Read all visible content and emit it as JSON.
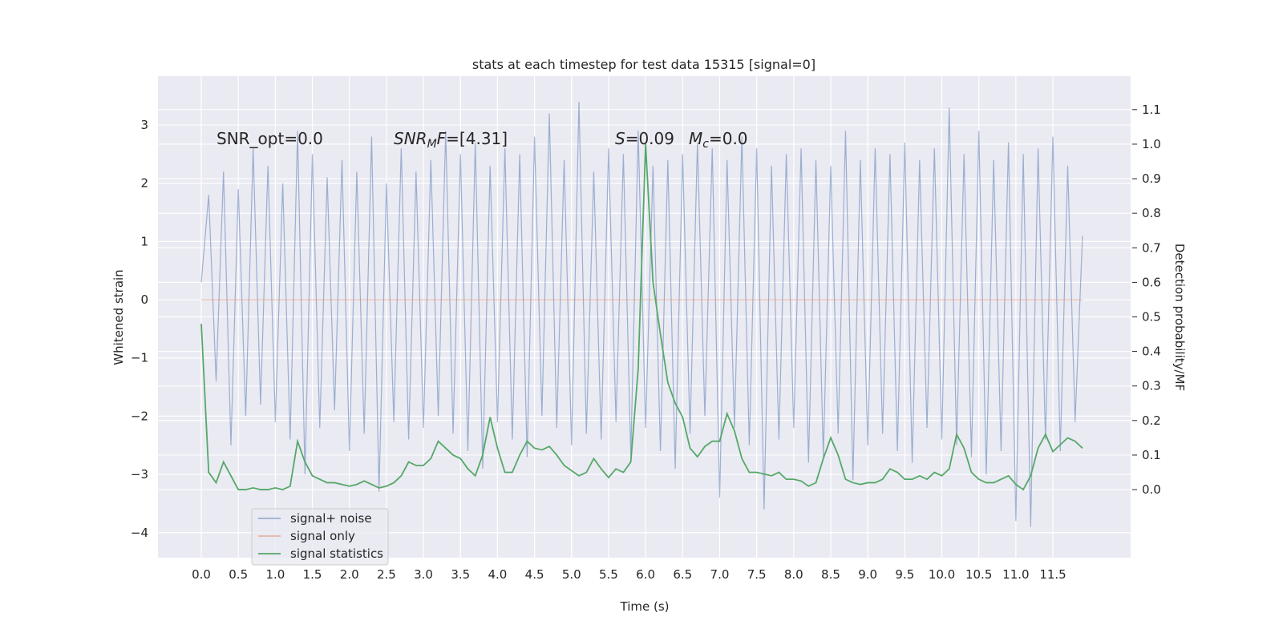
{
  "chart_data": {
    "type": "line",
    "title": "stats at each timestep for test data 15315 [signal=0]",
    "xlabel": "Time (s)",
    "ylabel": "Whitened strain",
    "y2label": "Detection probability/MF",
    "x": [
      0.0,
      0.1,
      0.2,
      0.3,
      0.4,
      0.5,
      0.6,
      0.7,
      0.8,
      0.9,
      1.0,
      1.1,
      1.2,
      1.3,
      1.4,
      1.5,
      1.6,
      1.7,
      1.8,
      1.9,
      2.0,
      2.1,
      2.2,
      2.3,
      2.4,
      2.5,
      2.6,
      2.7,
      2.8,
      2.9,
      3.0,
      3.1,
      3.2,
      3.3,
      3.4,
      3.5,
      3.6,
      3.7,
      3.8,
      3.9,
      4.0,
      4.1,
      4.2,
      4.3,
      4.4,
      4.5,
      4.6,
      4.7,
      4.8,
      4.9,
      5.0,
      5.1,
      5.2,
      5.3,
      5.4,
      5.5,
      5.6,
      5.7,
      5.8,
      5.9,
      6.0,
      6.1,
      6.2,
      6.3,
      6.4,
      6.5,
      6.6,
      6.7,
      6.8,
      6.9,
      7.0,
      7.1,
      7.2,
      7.3,
      7.4,
      7.5,
      7.6,
      7.7,
      7.8,
      7.9,
      8.0,
      8.1,
      8.2,
      8.3,
      8.4,
      8.5,
      8.6,
      8.7,
      8.8,
      8.9,
      9.0,
      9.1,
      9.2,
      9.3,
      9.4,
      9.5,
      9.6,
      9.7,
      9.8,
      9.9,
      10.0,
      10.1,
      10.2,
      10.3,
      10.4,
      10.5,
      10.6,
      10.7,
      10.8,
      10.9,
      11.0,
      11.1,
      11.2,
      11.3,
      11.4,
      11.5,
      11.6,
      11.7,
      11.8,
      11.9
    ],
    "series": [
      {
        "name": "signal+ noise",
        "color": "#4c72b0",
        "alpha": 0.5,
        "values": [
          0.3,
          1.8,
          -1.4,
          2.2,
          -2.5,
          1.9,
          -2.0,
          2.6,
          -1.8,
          2.3,
          -2.1,
          2.0,
          -2.4,
          2.9,
          -3.0,
          2.5,
          -2.2,
          2.1,
          -1.9,
          2.4,
          -2.6,
          2.2,
          -2.3,
          2.8,
          -3.3,
          2.0,
          -2.1,
          2.6,
          -2.4,
          2.2,
          -2.2,
          2.4,
          -2.0,
          2.9,
          -2.3,
          2.5,
          -2.6,
          2.7,
          -2.9,
          2.3,
          -2.1,
          2.6,
          -2.4,
          2.5,
          -2.7,
          2.8,
          -2.0,
          3.2,
          -2.2,
          2.4,
          -2.5,
          3.4,
          -2.3,
          2.2,
          -2.4,
          2.6,
          -2.1,
          2.5,
          -2.7,
          2.9,
          -2.2,
          2.3,
          -2.6,
          2.4,
          -2.9,
          2.5,
          -2.3,
          2.7,
          -2.0,
          2.6,
          -3.4,
          2.4,
          -2.2,
          2.8,
          -2.5,
          2.6,
          -3.6,
          2.3,
          -2.4,
          2.5,
          -2.2,
          2.6,
          -2.8,
          2.4,
          -2.7,
          2.3,
          -2.3,
          2.9,
          -3.1,
          2.4,
          -2.5,
          2.6,
          -2.3,
          2.5,
          -2.6,
          2.7,
          -2.8,
          2.4,
          -2.2,
          2.6,
          -2.4,
          3.3,
          -2.5,
          2.5,
          -2.7,
          2.9,
          -3.0,
          2.4,
          -2.6,
          2.7,
          -3.8,
          2.5,
          -3.9,
          2.6,
          -2.4,
          2.8,
          -2.6,
          2.3,
          -2.1,
          1.1
        ]
      },
      {
        "name": "signal only",
        "color": "#dd8452",
        "alpha": 0.5,
        "values": [
          0,
          0,
          0,
          0,
          0,
          0,
          0,
          0,
          0,
          0,
          0,
          0,
          0,
          0,
          0,
          0,
          0,
          0,
          0,
          0,
          0,
          0,
          0,
          0,
          0,
          0,
          0,
          0,
          0,
          0,
          0,
          0,
          0,
          0,
          0,
          0,
          0,
          0,
          0,
          0,
          0,
          0,
          0,
          0,
          0,
          0,
          0,
          0,
          0,
          0,
          0,
          0,
          0,
          0,
          0,
          0,
          0,
          0,
          0,
          0,
          0,
          0,
          0,
          0,
          0,
          0,
          0,
          0,
          0,
          0,
          0,
          0,
          0,
          0,
          0,
          0,
          0,
          0,
          0,
          0,
          0,
          0,
          0,
          0,
          0,
          0,
          0,
          0,
          0,
          0,
          0,
          0,
          0,
          0,
          0,
          0,
          0,
          0,
          0,
          0,
          0,
          0,
          0,
          0,
          0,
          0,
          0,
          0,
          0,
          0,
          0,
          0,
          0,
          0,
          0,
          0,
          0,
          0,
          0,
          0
        ]
      },
      {
        "name": "signal statistics",
        "color": "#55a868",
        "alpha": 1,
        "axis": "y2",
        "values": [
          0.48,
          0.05,
          0.02,
          0.08,
          0.04,
          0.0,
          0.0,
          0.005,
          0.0,
          0.0,
          0.005,
          0.0,
          0.01,
          0.14,
          0.08,
          0.04,
          0.03,
          0.02,
          0.02,
          0.015,
          0.01,
          0.015,
          0.025,
          0.015,
          0.005,
          0.01,
          0.02,
          0.04,
          0.08,
          0.07,
          0.07,
          0.09,
          0.14,
          0.12,
          0.1,
          0.09,
          0.06,
          0.04,
          0.1,
          0.21,
          0.12,
          0.05,
          0.05,
          0.1,
          0.14,
          0.12,
          0.115,
          0.125,
          0.1,
          0.07,
          0.055,
          0.04,
          0.05,
          0.09,
          0.06,
          0.035,
          0.06,
          0.05,
          0.08,
          0.35,
          1.0,
          0.6,
          0.45,
          0.31,
          0.25,
          0.21,
          0.12,
          0.095,
          0.125,
          0.14,
          0.14,
          0.22,
          0.17,
          0.09,
          0.05,
          0.05,
          0.045,
          0.04,
          0.05,
          0.03,
          0.03,
          0.025,
          0.01,
          0.02,
          0.09,
          0.15,
          0.1,
          0.03,
          0.02,
          0.015,
          0.02,
          0.02,
          0.03,
          0.06,
          0.05,
          0.03,
          0.03,
          0.04,
          0.03,
          0.05,
          0.04,
          0.06,
          0.16,
          0.12,
          0.05,
          0.03,
          0.02,
          0.02,
          0.03,
          0.04,
          0.015,
          0.0,
          0.04,
          0.12,
          0.16,
          0.11,
          0.13,
          0.15,
          0.14,
          0.12
        ]
      }
    ],
    "xlim": [
      -0.585,
      12.55
    ],
    "xticks": [
      {
        "value": 0,
        "label": "0.0"
      },
      0.5,
      {
        "value": 1,
        "label": "1.0"
      },
      1.5,
      {
        "value": 2,
        "label": "2.0"
      },
      2.5,
      {
        "value": 3,
        "label": "3.0"
      },
      3.5,
      {
        "value": 4,
        "label": "4.0"
      },
      4.5,
      {
        "value": 5,
        "label": "5.0"
      },
      5.5,
      {
        "value": 6,
        "label": "6.0"
      },
      6.5,
      {
        "value": 7,
        "label": "7.0"
      },
      7.5,
      {
        "value": 8,
        "label": "8.0"
      },
      8.5,
      {
        "value": 9,
        "label": "9.0"
      },
      9.5,
      {
        "value": 10,
        "label": "10.0"
      },
      10.5,
      {
        "value": 11,
        "label": "11.0"
      },
      11.5
    ],
    "ylim": [
      -4.43,
      3.84
    ],
    "yticks": [
      {
        "value": -4,
        "label": "−4"
      },
      {
        "value": -3,
        "label": "−3"
      },
      {
        "value": -2,
        "label": "−2"
      },
      {
        "value": -1,
        "label": "−1"
      },
      0,
      1,
      2,
      3
    ],
    "y2lim": [
      -0.197,
      1.197
    ],
    "y2ticks": [
      {
        "value": 0,
        "label": "0.0"
      },
      0.1,
      0.2,
      0.3,
      0.4,
      0.5,
      0.6,
      0.7,
      0.8,
      0.9,
      {
        "value": 1,
        "label": "1.0"
      },
      1.1
    ],
    "grid": true,
    "legend": "lower left",
    "annotations": [
      [
        {
          "t": "SNR_opt=0.0"
        }
      ],
      [
        {
          "t": "SNR",
          "italic": true
        },
        {
          "t": "M",
          "italic": true,
          "sub": true
        },
        {
          "t": "F",
          "italic": true
        },
        {
          "t": "=[4.31]"
        }
      ],
      [
        {
          "t": "S",
          "italic": true
        },
        {
          "t": "=0.09"
        }
      ],
      [
        {
          "t": "M",
          "italic": true
        },
        {
          "t": "c",
          "italic": true,
          "sub": true
        },
        {
          "t": "=0.0"
        }
      ]
    ]
  }
}
